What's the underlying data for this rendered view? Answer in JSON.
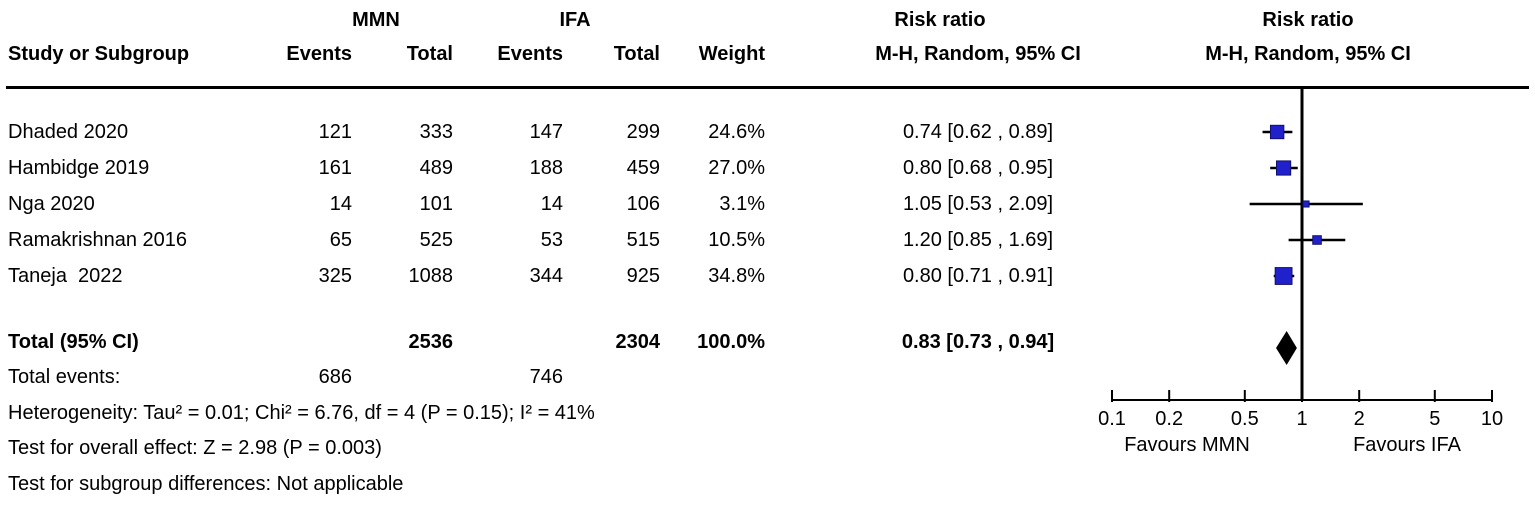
{
  "header": {
    "group1_label": "MMN",
    "group2_label": "IFA",
    "risk_ratio_text": "Risk ratio",
    "risk_ratio_plot": "Risk ratio",
    "study_col": "Study or Subgroup",
    "events1_col": "Events",
    "total1_col": "Total",
    "events2_col": "Events",
    "total2_col": "Total",
    "weight_col": "Weight",
    "ci_text_col": "M-H, Random, 95% CI",
    "ci_plot_col": "M-H, Random, 95% CI"
  },
  "studies": [
    {
      "name": "Dhaded 2020",
      "events1": "121",
      "total1": "333",
      "events2": "147",
      "total2": "299",
      "weight": "24.6%",
      "ci_label": "0.74 [0.62 , 0.89]"
    },
    {
      "name": "Hambidge 2019",
      "events1": "161",
      "total1": "489",
      "events2": "188",
      "total2": "459",
      "weight": "27.0%",
      "ci_label": "0.80 [0.68 , 0.95]"
    },
    {
      "name": "Nga 2020",
      "events1": "14",
      "total1": "101",
      "events2": "14",
      "total2": "106",
      "weight": "3.1%",
      "ci_label": "1.05 [0.53 , 2.09]"
    },
    {
      "name": "Ramakrishnan 2016",
      "events1": "65",
      "total1": "525",
      "events2": "53",
      "total2": "515",
      "weight": "10.5%",
      "ci_label": "1.20 [0.85 , 1.69]"
    },
    {
      "name": "Taneja  2022",
      "events1": "325",
      "total1": "1088",
      "events2": "344",
      "total2": "925",
      "weight": "34.8%",
      "ci_label": "0.80 [0.71 , 0.91]"
    }
  ],
  "total": {
    "label": "Total (95% CI)",
    "total1": "2536",
    "total2": "2304",
    "weight": "100.0%",
    "ci_label": "0.83 [0.73 , 0.94]",
    "events_label": "Total events:",
    "events1": "686",
    "events2": "746"
  },
  "footnotes": {
    "heterogeneity": "Heterogeneity: Tau² = 0.01; Chi² = 6.76, df = 4 (P = 0.15); I² = 41%",
    "overall_effect": "Test for overall effect: Z = 2.98 (P = 0.003)",
    "subgroup": "Test for subgroup differences: Not applicable"
  },
  "chart_data": {
    "type": "scatter",
    "subtype": "forest_plot",
    "title": "",
    "effect_measure": "Risk ratio",
    "method": "M-H, Random, 95% CI",
    "x_scale": "log",
    "x_range": [
      0.1,
      10
    ],
    "x_ticks": [
      0.1,
      0.2,
      0.5,
      1,
      2,
      5,
      10
    ],
    "x_tick_labels": [
      "0.1",
      "0.2",
      "0.5",
      "1",
      "2",
      "5",
      "10"
    ],
    "null_line": 1,
    "favours_left": "Favours MMN",
    "favours_right": "Favours IFA",
    "series": [
      {
        "name": "Dhaded 2020",
        "rr": 0.74,
        "ci_low": 0.62,
        "ci_high": 0.89,
        "weight_pct": 24.6
      },
      {
        "name": "Hambidge 2019",
        "rr": 0.8,
        "ci_low": 0.68,
        "ci_high": 0.95,
        "weight_pct": 27.0
      },
      {
        "name": "Nga 2020",
        "rr": 1.05,
        "ci_low": 0.53,
        "ci_high": 2.09,
        "weight_pct": 3.1
      },
      {
        "name": "Ramakrishnan 2016",
        "rr": 1.2,
        "ci_low": 0.85,
        "ci_high": 1.69,
        "weight_pct": 10.5
      },
      {
        "name": "Taneja  2022",
        "rr": 0.8,
        "ci_low": 0.71,
        "ci_high": 0.91,
        "weight_pct": 34.8
      }
    ],
    "total": {
      "rr": 0.83,
      "ci_low": 0.73,
      "ci_high": 0.94,
      "weight_pct": 100.0
    }
  },
  "colors": {
    "square_fill": "#2121CC",
    "square_stroke": "#10106E",
    "diamond_fill": "#000000",
    "line": "#000000",
    "text": "#000000",
    "background": "#FFFFFF"
  }
}
